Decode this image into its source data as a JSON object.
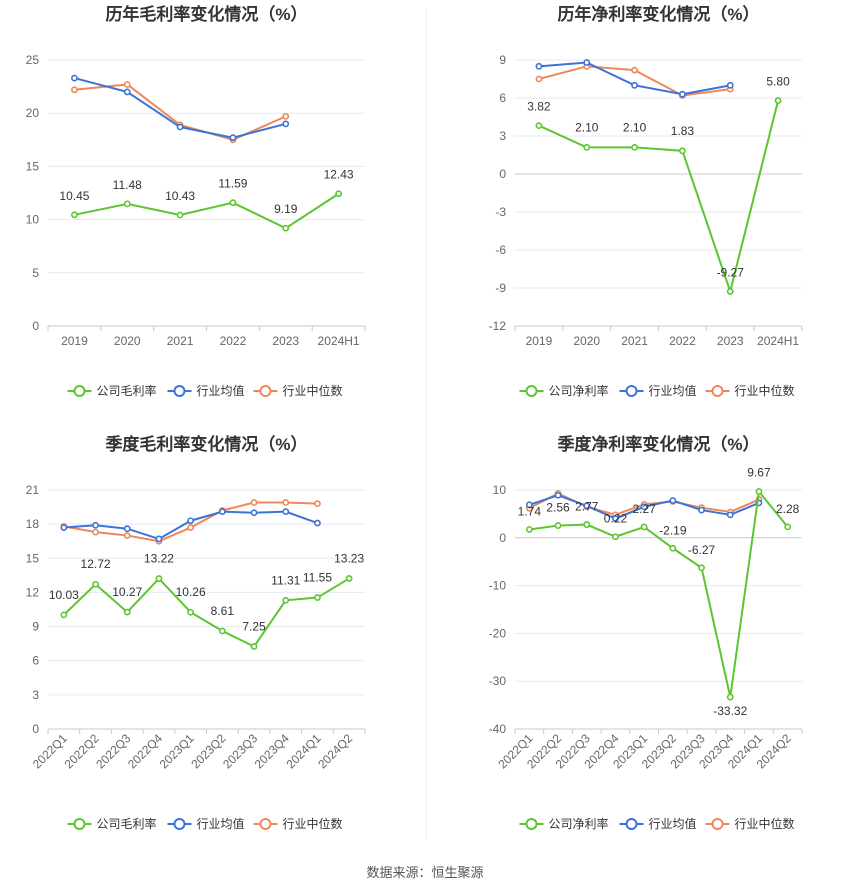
{
  "source_text": "数据来源：恒生聚源",
  "colors": {
    "company": "#5bc62f",
    "industry_avg": "#3b73d8",
    "industry_median": "#f0875a",
    "axis_text": "#666666",
    "grid": "#e6e9f0",
    "title": "#333333"
  },
  "legend": {
    "company_gross": "公司毛利率",
    "company_net": "公司净利率",
    "industry_avg": "行业均值",
    "industry_median": "行业中位数"
  },
  "chart_data": [
    {
      "id": "annual-gross",
      "type": "line",
      "title": "历年毛利率变化情况（%）",
      "categories": [
        "2019",
        "2020",
        "2021",
        "2022",
        "2023",
        "2024H1"
      ],
      "ylim": [
        0,
        25
      ],
      "yticks": [
        0,
        5,
        10,
        15,
        20,
        25
      ],
      "ytick_labels": [
        "0",
        "5",
        "10",
        "15",
        "20",
        "25"
      ],
      "series": [
        {
          "name": "公司毛利率",
          "role": "company",
          "values": [
            10.45,
            11.48,
            10.43,
            11.59,
            9.19,
            12.43
          ],
          "labels": [
            "10.45",
            "11.48",
            "10.43",
            "11.59",
            "9.19",
            "12.43"
          ]
        },
        {
          "name": "行业均值",
          "role": "industry_avg",
          "values": [
            23.3,
            22.0,
            18.7,
            17.7,
            19.0,
            null
          ]
        },
        {
          "name": "行业中位数",
          "role": "industry_median",
          "values": [
            22.2,
            22.7,
            18.9,
            17.5,
            19.7,
            null
          ]
        }
      ],
      "legend_position": "bottom"
    },
    {
      "id": "annual-net",
      "type": "line",
      "title": "历年净利率变化情况（%）",
      "categories": [
        "2019",
        "2020",
        "2021",
        "2022",
        "2023",
        "2024H1"
      ],
      "ylim": [
        -12,
        9
      ],
      "yticks": [
        -12,
        -9,
        -6,
        -3,
        0,
        3,
        6,
        9
      ],
      "ytick_labels": [
        "-12",
        "-9",
        "-6",
        "-3",
        "0",
        "3",
        "6",
        "9"
      ],
      "series": [
        {
          "name": "公司净利率",
          "role": "company",
          "values": [
            3.82,
            2.1,
            2.1,
            1.83,
            -9.27,
            5.8
          ],
          "labels": [
            "3.82",
            "2.10",
            "2.10",
            "1.83",
            "-9.27",
            "5.80"
          ]
        },
        {
          "name": "行业均值",
          "role": "industry_avg",
          "values": [
            8.5,
            8.8,
            7.0,
            6.3,
            7.0,
            null
          ]
        },
        {
          "name": "行业中位数",
          "role": "industry_median",
          "values": [
            7.5,
            8.5,
            8.2,
            6.2,
            6.7,
            null
          ]
        }
      ],
      "legend_position": "bottom"
    },
    {
      "id": "quarterly-gross",
      "type": "line",
      "title": "季度毛利率变化情况（%）",
      "categories": [
        "2022Q1",
        "2022Q2",
        "2022Q3",
        "2022Q4",
        "2023Q1",
        "2023Q2",
        "2023Q3",
        "2023Q4",
        "2024Q1",
        "2024Q2"
      ],
      "ylim": [
        0,
        21
      ],
      "yticks": [
        0,
        3,
        6,
        9,
        12,
        15,
        18,
        21
      ],
      "ytick_labels": [
        "0",
        "3",
        "6",
        "9",
        "12",
        "15",
        "18",
        "21"
      ],
      "series": [
        {
          "name": "公司毛利率",
          "role": "company",
          "values": [
            10.03,
            12.72,
            10.27,
            13.22,
            10.26,
            8.61,
            7.25,
            11.31,
            11.55,
            13.23
          ],
          "labels": [
            "10.03",
            "12.72",
            "10.27",
            "13.22",
            "10.26",
            "8.61",
            "7.25",
            "11.31",
            "11.55",
            "13.23"
          ]
        },
        {
          "name": "行业均值",
          "role": "industry_avg",
          "values": [
            17.7,
            17.9,
            17.6,
            16.7,
            18.3,
            19.1,
            19.0,
            19.1,
            18.1,
            null
          ]
        },
        {
          "name": "行业中位数",
          "role": "industry_median",
          "values": [
            17.8,
            17.3,
            17.0,
            16.5,
            17.7,
            19.2,
            19.9,
            19.9,
            19.8,
            null
          ]
        }
      ],
      "legend_position": "bottom"
    },
    {
      "id": "quarterly-net",
      "type": "line",
      "title": "季度净利率变化情况（%）",
      "categories": [
        "2022Q1",
        "2022Q2",
        "2022Q3",
        "2022Q4",
        "2023Q1",
        "2023Q2",
        "2023Q3",
        "2023Q4",
        "2024Q1",
        "2024Q2"
      ],
      "ylim": [
        -40,
        10
      ],
      "yticks": [
        -40,
        -30,
        -20,
        -10,
        0,
        10
      ],
      "ytick_labels": [
        "-40",
        "-30",
        "-20",
        "-10",
        "0",
        "10"
      ],
      "series": [
        {
          "name": "公司净利率",
          "role": "company",
          "values": [
            1.74,
            2.56,
            2.77,
            0.22,
            2.27,
            -2.19,
            -6.27,
            -33.32,
            9.67,
            2.28
          ],
          "labels": [
            "1.74",
            "2.56",
            "2.77",
            "0.22",
            "2.27",
            "-2.19",
            "-6.27",
            "-33.32",
            "9.67",
            "2.28"
          ]
        },
        {
          "name": "行业均值",
          "role": "industry_avg",
          "values": [
            6.9,
            8.9,
            6.7,
            4.0,
            6.5,
            7.8,
            5.8,
            4.8,
            7.3,
            null
          ]
        },
        {
          "name": "行业中位数",
          "role": "industry_median",
          "values": [
            6.2,
            9.3,
            6.5,
            4.8,
            7.0,
            7.6,
            6.3,
            5.4,
            8.0,
            null
          ]
        }
      ],
      "legend_position": "bottom"
    }
  ]
}
